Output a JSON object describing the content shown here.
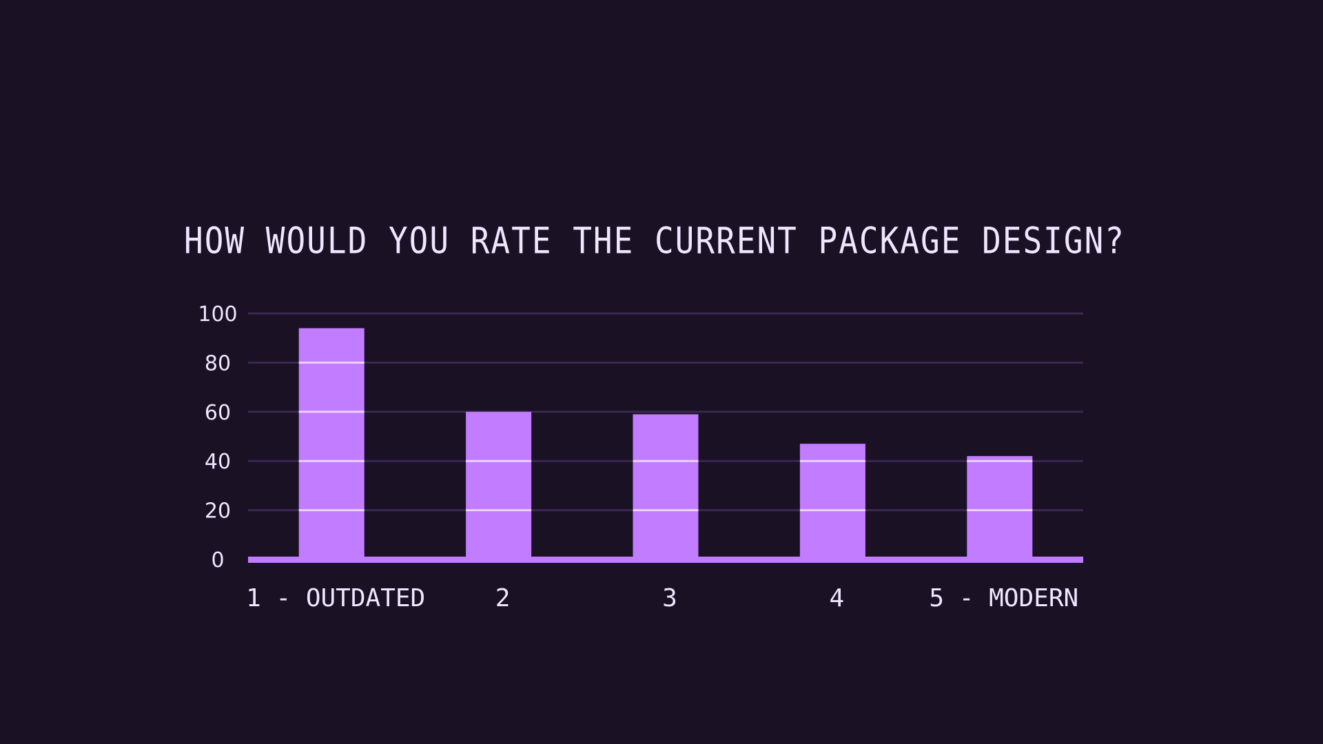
{
  "chart_data": {
    "type": "bar",
    "title": "HOW WOULD YOU RATE THE CURRENT PACKAGE DESIGN?",
    "xlabel": "",
    "ylabel": "",
    "categories": [
      "1 - OUTDATED",
      "2",
      "3",
      "4",
      "5 - MODERN"
    ],
    "values": [
      94,
      60,
      59,
      47,
      42
    ],
    "ylim": [
      0,
      100
    ],
    "yticks": [
      0,
      20,
      40,
      60,
      80,
      100
    ],
    "grid": true,
    "legend": "none"
  },
  "colors": {
    "background": "#1b1125",
    "bar": "#c27cff",
    "grid": "#3a2850",
    "text": "#f1e6ff",
    "bar_grid_line": "#f3e3ff"
  }
}
